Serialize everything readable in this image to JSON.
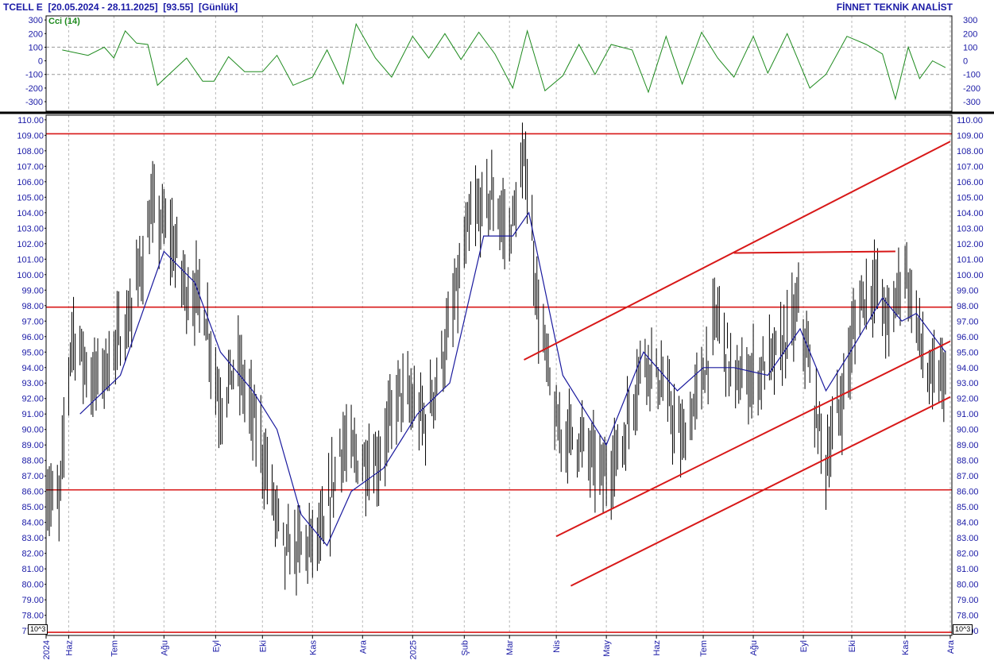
{
  "header": {
    "symbol": "TCELL E",
    "date_range": "[20.05.2024 - 28.11.2025]",
    "last_price": "[93.55]",
    "period": "[Günlük]",
    "vendor": "FİNNET TEKNİK ANALİST"
  },
  "indicator": {
    "label": "Cci (14)",
    "color": "#1d8a1d",
    "ticks": [
      "300",
      "200",
      "100",
      "0",
      "-100",
      "-200",
      "-300"
    ],
    "tick_values": [
      300,
      200,
      100,
      0,
      -100,
      -200,
      -300
    ],
    "reference_levels": [
      100,
      -100
    ],
    "ylim": [
      -370,
      330
    ]
  },
  "scale_marker": "10^3",
  "colors": {
    "price_bars": "#000000",
    "moving_average": "#1a1a9e",
    "trend_lines": "#d81818",
    "axis_text": "#1a1aa6",
    "grid": "#b8b8b8"
  },
  "chart_data": {
    "type": "line",
    "title": "TCELL E [20.05.2024 - 28.11.2025] [93.55] [Günlük]",
    "xlabel": "",
    "ylabel": "",
    "x_range": [
      "2024-05-20",
      "2025-11-28"
    ],
    "ylim": [
      76.7,
      110.3
    ],
    "y_ticks": [
      110.0,
      109.0,
      108.0,
      107.0,
      106.0,
      105.0,
      104.0,
      103.0,
      102.0,
      101.0,
      100.0,
      99.0,
      98.0,
      97.0,
      96.0,
      95.0,
      94.0,
      93.0,
      92.0,
      91.0,
      90.0,
      89.0,
      88.0,
      87.0,
      86.0,
      85.0,
      84.0,
      83.0,
      82.0,
      81.0,
      80.0,
      79.0,
      78.0,
      77.0
    ],
    "x_ticks": [
      {
        "label": "2024",
        "date": "2024-05-20"
      },
      {
        "label": "Haz",
        "date": "2024-06-03"
      },
      {
        "label": "Tem",
        "date": "2024-07-01"
      },
      {
        "label": "Ağu",
        "date": "2024-08-01"
      },
      {
        "label": "Eyl",
        "date": "2024-09-02"
      },
      {
        "label": "Eki",
        "date": "2024-10-01"
      },
      {
        "label": "Kas",
        "date": "2024-11-01"
      },
      {
        "label": "Ara",
        "date": "2024-12-02"
      },
      {
        "label": "2025",
        "date": "2025-01-02"
      },
      {
        "label": "Şub",
        "date": "2025-02-03"
      },
      {
        "label": "Mar",
        "date": "2025-03-03"
      },
      {
        "label": "Nis",
        "date": "2025-04-01"
      },
      {
        "label": "May",
        "date": "2025-05-02"
      },
      {
        "label": "Haz",
        "date": "2025-06-02"
      },
      {
        "label": "Tem",
        "date": "2025-07-01"
      },
      {
        "label": "Ağu",
        "date": "2025-08-01"
      },
      {
        "label": "Eyl",
        "date": "2025-09-01"
      },
      {
        "label": "Eki",
        "date": "2025-10-01"
      },
      {
        "label": "Kas",
        "date": "2025-11-03"
      },
      {
        "label": "Ara",
        "date": "2025-12-01"
      }
    ],
    "grid": true,
    "horizontal_levels": [
      109.1,
      97.9,
      86.1,
      76.9
    ],
    "trend_lines": [
      {
        "name": "upper-channel",
        "from": {
          "date": "2025-03-12",
          "y": 94.5
        },
        "to": {
          "date": "2025-12-01",
          "y": 108.6
        }
      },
      {
        "name": "middle-channel",
        "from": {
          "date": "2025-04-01",
          "y": 83.1
        },
        "to": {
          "date": "2025-12-01",
          "y": 95.7
        }
      },
      {
        "name": "lower-channel",
        "from": {
          "date": "2025-04-10",
          "y": 79.9
        },
        "to": {
          "date": "2025-12-01",
          "y": 92.1
        }
      },
      {
        "name": "resistance-segment",
        "from": {
          "date": "2025-07-20",
          "y": 101.4
        },
        "to": {
          "date": "2025-10-28",
          "y": 101.5
        }
      }
    ],
    "price_anchors": [
      {
        "date": "2024-05-20",
        "y": 86.0
      },
      {
        "date": "2024-05-28",
        "y": 85.0
      },
      {
        "date": "2024-06-05",
        "y": 96.5
      },
      {
        "date": "2024-06-18",
        "y": 93.0
      },
      {
        "date": "2024-06-28",
        "y": 94.5
      },
      {
        "date": "2024-07-10",
        "y": 97.0
      },
      {
        "date": "2024-07-25",
        "y": 104.0
      },
      {
        "date": "2024-08-05",
        "y": 102.5
      },
      {
        "date": "2024-08-15",
        "y": 99.0
      },
      {
        "date": "2024-08-25",
        "y": 98.5
      },
      {
        "date": "2024-09-05",
        "y": 91.5
      },
      {
        "date": "2024-09-15",
        "y": 94.5
      },
      {
        "date": "2024-09-30",
        "y": 89.0
      },
      {
        "date": "2024-10-15",
        "y": 82.0
      },
      {
        "date": "2024-10-28",
        "y": 82.5
      },
      {
        "date": "2024-11-08",
        "y": 83.0
      },
      {
        "date": "2024-11-18",
        "y": 89.0
      },
      {
        "date": "2024-11-30",
        "y": 88.0
      },
      {
        "date": "2024-12-12",
        "y": 88.0
      },
      {
        "date": "2024-12-25",
        "y": 92.5
      },
      {
        "date": "2025-01-10",
        "y": 90.5
      },
      {
        "date": "2025-01-24",
        "y": 96.0
      },
      {
        "date": "2025-02-07",
        "y": 103.5
      },
      {
        "date": "2025-02-20",
        "y": 105.0
      },
      {
        "date": "2025-03-03",
        "y": 102.5
      },
      {
        "date": "2025-03-13",
        "y": 107.5
      },
      {
        "date": "2025-03-20",
        "y": 98.5
      },
      {
        "date": "2025-04-01",
        "y": 90.0
      },
      {
        "date": "2025-04-15",
        "y": 89.5
      },
      {
        "date": "2025-04-30",
        "y": 87.0
      },
      {
        "date": "2025-05-12",
        "y": 89.0
      },
      {
        "date": "2025-05-25",
        "y": 95.0
      },
      {
        "date": "2025-06-05",
        "y": 93.0
      },
      {
        "date": "2025-06-18",
        "y": 89.0
      },
      {
        "date": "2025-07-01",
        "y": 93.5
      },
      {
        "date": "2025-07-10",
        "y": 97.5
      },
      {
        "date": "2025-07-20",
        "y": 93.0
      },
      {
        "date": "2025-08-03",
        "y": 93.5
      },
      {
        "date": "2025-08-18",
        "y": 95.0
      },
      {
        "date": "2025-08-30",
        "y": 98.0
      },
      {
        "date": "2025-09-07",
        "y": 92.0
      },
      {
        "date": "2025-09-15",
        "y": 88.0
      },
      {
        "date": "2025-09-25",
        "y": 92.0
      },
      {
        "date": "2025-10-05",
        "y": 98.0
      },
      {
        "date": "2025-10-15",
        "y": 99.5
      },
      {
        "date": "2025-10-25",
        "y": 96.5
      },
      {
        "date": "2025-11-02",
        "y": 101.0
      },
      {
        "date": "2025-11-10",
        "y": 97.0
      },
      {
        "date": "2025-11-18",
        "y": 93.0
      },
      {
        "date": "2025-11-28",
        "y": 93.55
      }
    ],
    "moving_average": [
      {
        "date": "2024-06-10",
        "y": 91.0
      },
      {
        "date": "2024-07-05",
        "y": 93.5
      },
      {
        "date": "2024-08-01",
        "y": 101.5
      },
      {
        "date": "2024-08-20",
        "y": 99.5
      },
      {
        "date": "2024-09-05",
        "y": 95.0
      },
      {
        "date": "2024-09-25",
        "y": 92.5
      },
      {
        "date": "2024-10-10",
        "y": 90.0
      },
      {
        "date": "2024-10-25",
        "y": 84.5
      },
      {
        "date": "2024-11-10",
        "y": 82.5
      },
      {
        "date": "2024-11-25",
        "y": 86.0
      },
      {
        "date": "2024-12-15",
        "y": 87.5
      },
      {
        "date": "2025-01-05",
        "y": 91.0
      },
      {
        "date": "2025-01-25",
        "y": 93.0
      },
      {
        "date": "2025-02-15",
        "y": 102.5
      },
      {
        "date": "2025-03-05",
        "y": 102.5
      },
      {
        "date": "2025-03-15",
        "y": 104.0
      },
      {
        "date": "2025-04-05",
        "y": 93.5
      },
      {
        "date": "2025-04-20",
        "y": 91.0
      },
      {
        "date": "2025-05-02",
        "y": 89.0
      },
      {
        "date": "2025-05-25",
        "y": 95.0
      },
      {
        "date": "2025-06-15",
        "y": 92.5
      },
      {
        "date": "2025-07-01",
        "y": 94.0
      },
      {
        "date": "2025-07-20",
        "y": 94.0
      },
      {
        "date": "2025-08-10",
        "y": 93.5
      },
      {
        "date": "2025-08-30",
        "y": 96.5
      },
      {
        "date": "2025-09-15",
        "y": 92.5
      },
      {
        "date": "2025-09-30",
        "y": 95.0
      },
      {
        "date": "2025-10-20",
        "y": 98.5
      },
      {
        "date": "2025-11-01",
        "y": 97.0
      },
      {
        "date": "2025-11-10",
        "y": 97.5
      },
      {
        "date": "2025-11-28",
        "y": 95.0
      }
    ],
    "cci_series": [
      {
        "date": "2024-05-30",
        "y": 80
      },
      {
        "date": "2024-06-15",
        "y": 40
      },
      {
        "date": "2024-06-25",
        "y": 100
      },
      {
        "date": "2024-07-01",
        "y": 20
      },
      {
        "date": "2024-07-08",
        "y": 220
      },
      {
        "date": "2024-07-15",
        "y": 130
      },
      {
        "date": "2024-07-22",
        "y": 120
      },
      {
        "date": "2024-07-28",
        "y": -180
      },
      {
        "date": "2024-08-05",
        "y": -90
      },
      {
        "date": "2024-08-15",
        "y": 20
      },
      {
        "date": "2024-08-25",
        "y": -150
      },
      {
        "date": "2024-09-01",
        "y": -150
      },
      {
        "date": "2024-09-10",
        "y": 30
      },
      {
        "date": "2024-09-20",
        "y": -80
      },
      {
        "date": "2024-10-01",
        "y": -80
      },
      {
        "date": "2024-10-10",
        "y": 40
      },
      {
        "date": "2024-10-20",
        "y": -180
      },
      {
        "date": "2024-11-01",
        "y": -120
      },
      {
        "date": "2024-11-10",
        "y": 80
      },
      {
        "date": "2024-11-20",
        "y": -170
      },
      {
        "date": "2024-11-28",
        "y": 270
      },
      {
        "date": "2024-12-10",
        "y": 20
      },
      {
        "date": "2024-12-20",
        "y": -120
      },
      {
        "date": "2025-01-02",
        "y": 180
      },
      {
        "date": "2025-01-12",
        "y": 20
      },
      {
        "date": "2025-01-22",
        "y": 200
      },
      {
        "date": "2025-02-01",
        "y": 10
      },
      {
        "date": "2025-02-12",
        "y": 210
      },
      {
        "date": "2025-02-22",
        "y": 50
      },
      {
        "date": "2025-03-05",
        "y": -200
      },
      {
        "date": "2025-03-14",
        "y": 220
      },
      {
        "date": "2025-03-25",
        "y": -220
      },
      {
        "date": "2025-04-05",
        "y": -110
      },
      {
        "date": "2025-04-15",
        "y": 120
      },
      {
        "date": "2025-04-25",
        "y": -100
      },
      {
        "date": "2025-05-05",
        "y": 120
      },
      {
        "date": "2025-05-18",
        "y": 80
      },
      {
        "date": "2025-05-28",
        "y": -230
      },
      {
        "date": "2025-06-08",
        "y": 180
      },
      {
        "date": "2025-06-18",
        "y": -170
      },
      {
        "date": "2025-06-30",
        "y": 210
      },
      {
        "date": "2025-07-10",
        "y": 20
      },
      {
        "date": "2025-07-20",
        "y": -120
      },
      {
        "date": "2025-08-01",
        "y": 180
      },
      {
        "date": "2025-08-10",
        "y": -90
      },
      {
        "date": "2025-08-22",
        "y": 200
      },
      {
        "date": "2025-09-05",
        "y": -200
      },
      {
        "date": "2025-09-15",
        "y": -100
      },
      {
        "date": "2025-09-28",
        "y": 180
      },
      {
        "date": "2025-10-10",
        "y": 120
      },
      {
        "date": "2025-10-20",
        "y": 50
      },
      {
        "date": "2025-10-28",
        "y": -280
      },
      {
        "date": "2025-11-05",
        "y": 100
      },
      {
        "date": "2025-11-12",
        "y": -130
      },
      {
        "date": "2025-11-20",
        "y": 0
      },
      {
        "date": "2025-11-28",
        "y": -50
      }
    ]
  }
}
